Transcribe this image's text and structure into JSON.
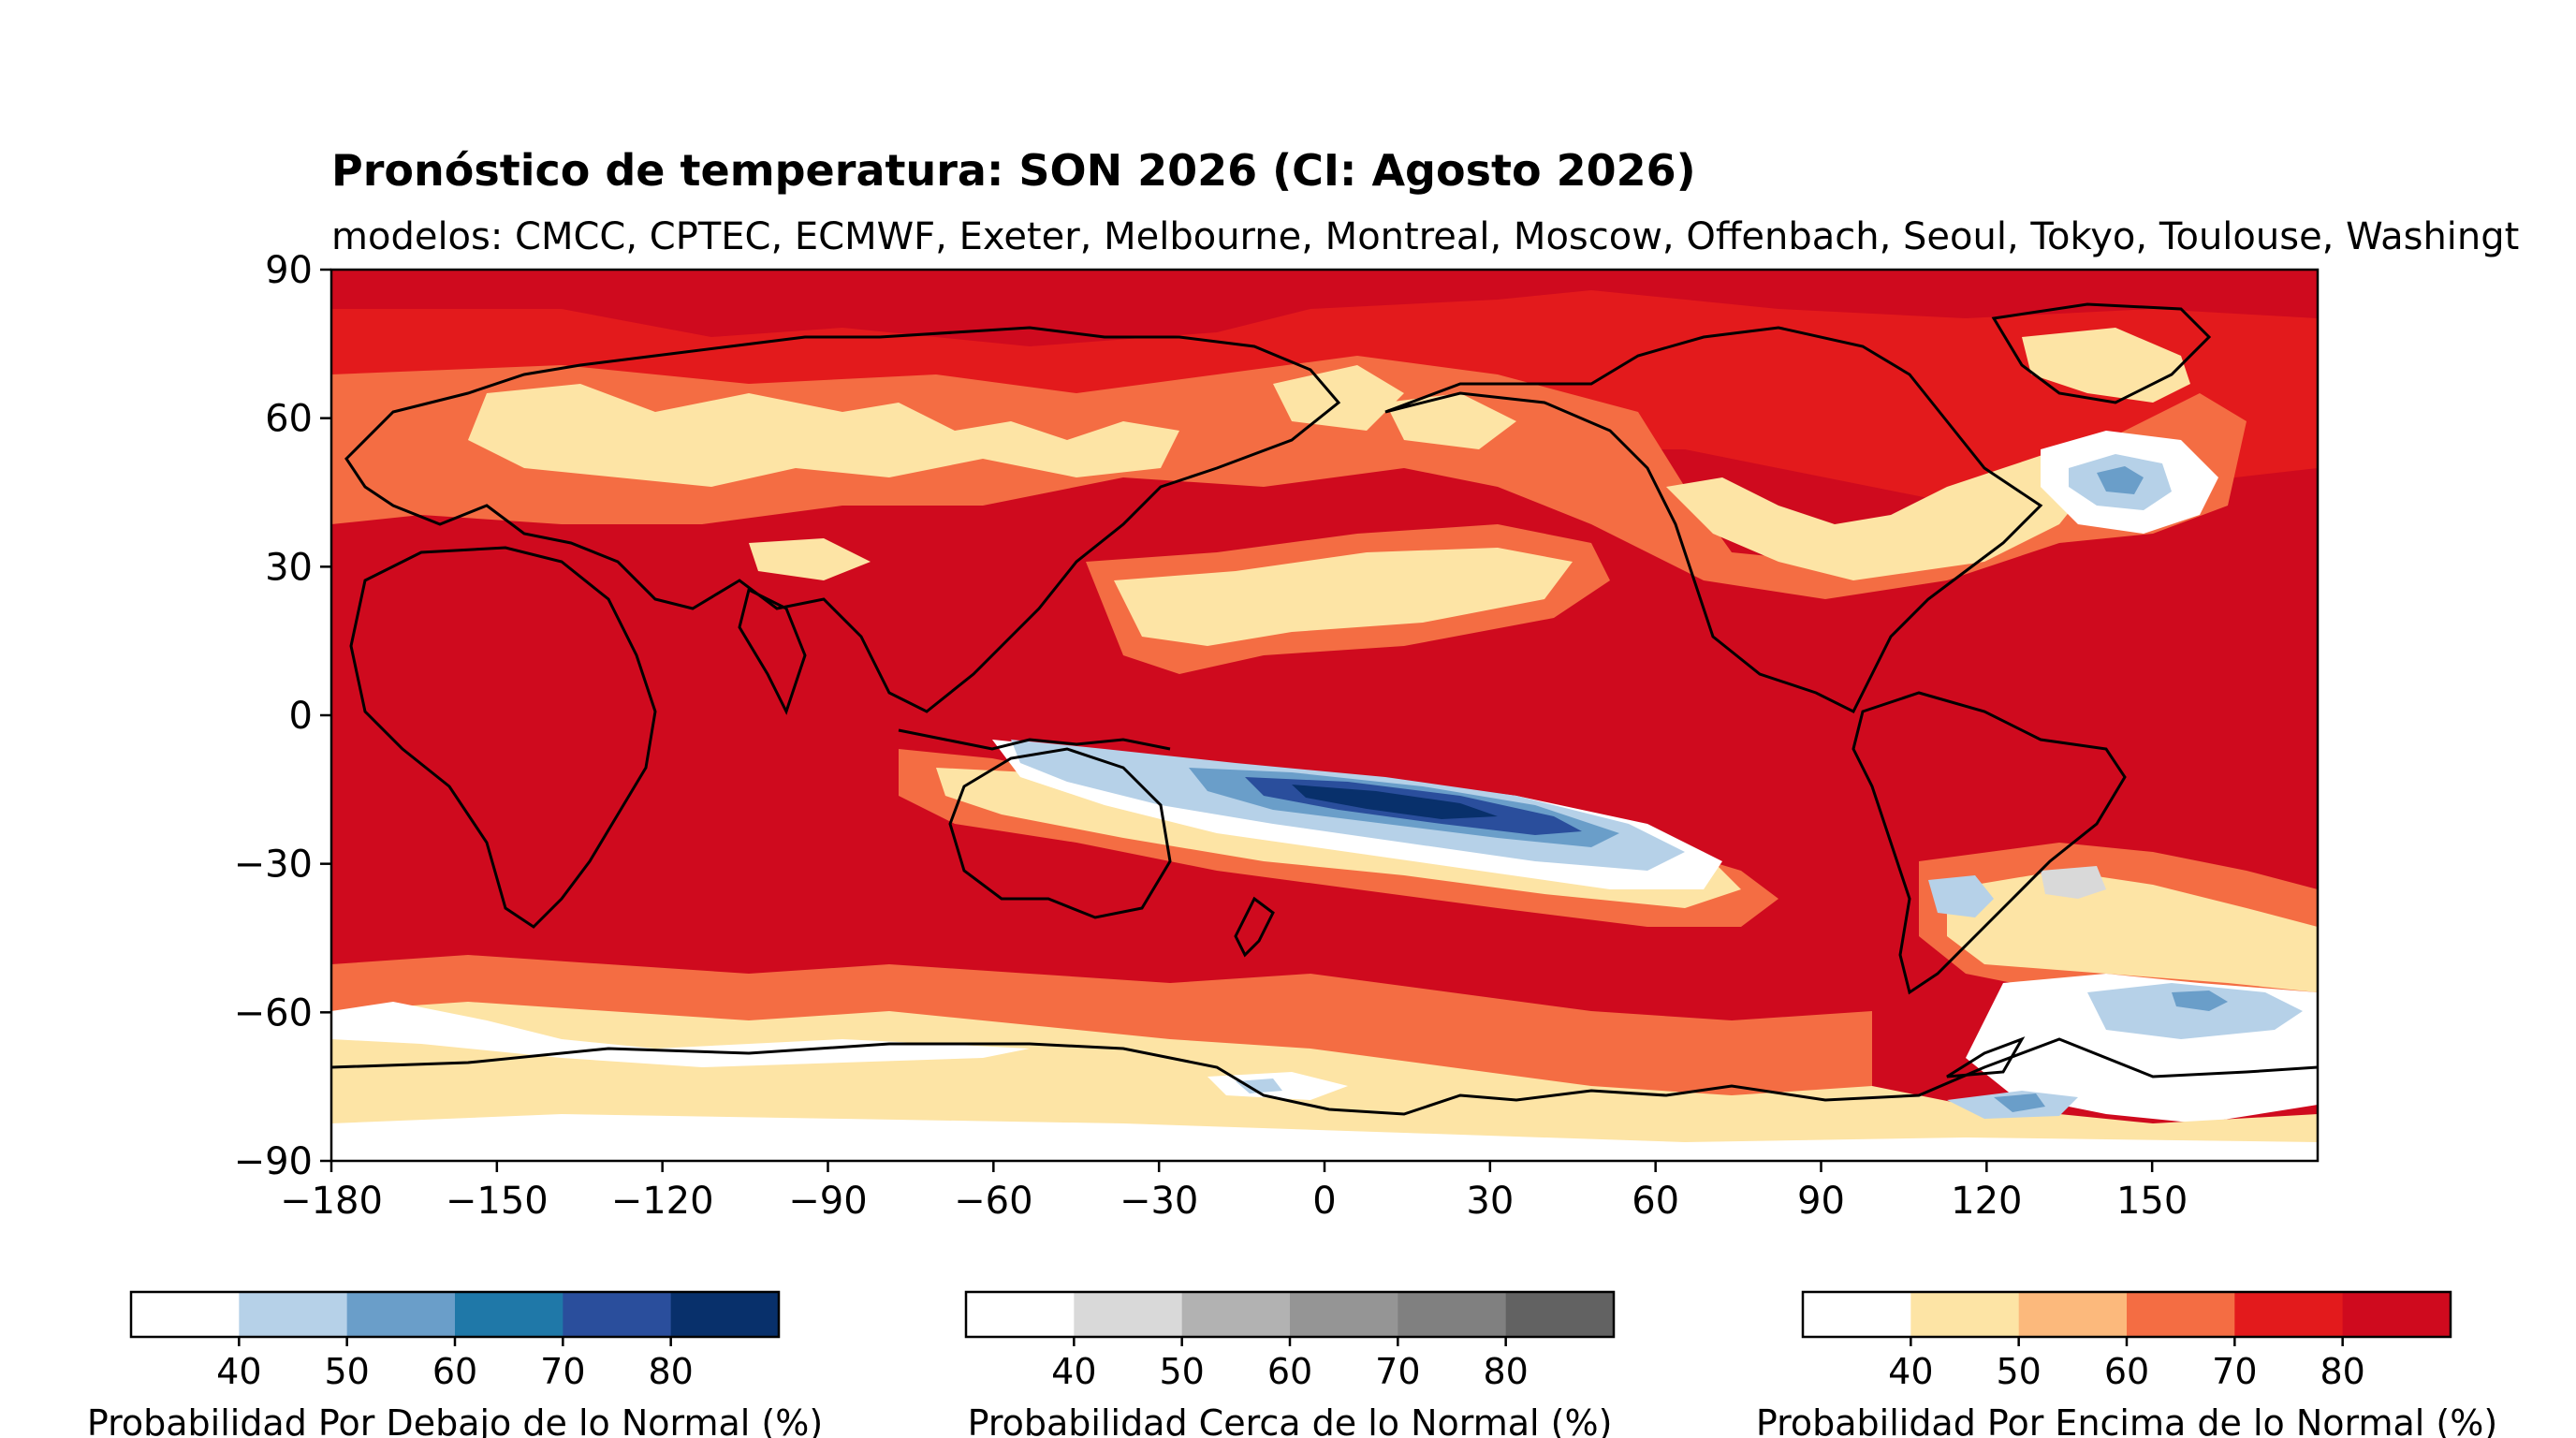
{
  "title": "Pronóstico de temperatura: SON 2026 (CI: Agosto 2026)",
  "subtitle": "modelos: CMCC, CPTEC, ECMWF, Exeter, Melbourne, Montreal, Moscow, Offenbach, Seoul, Tokyo, Toulouse, Washingt",
  "map": {
    "lon_ticks": [
      "−180",
      "−150",
      "−120",
      "−90",
      "−60",
      "−30",
      "0",
      "30",
      "60",
      "90",
      "120",
      "150"
    ],
    "lat_ticks": [
      "90",
      "60",
      "30",
      "0",
      "−30",
      "−60",
      "−90"
    ],
    "colors": {
      "white": "#ffffff",
      "above_50": "#fde4a5",
      "above_60": "#fcb97c",
      "above_70": "#f46d43",
      "above_80": "#e31a1c",
      "above_90": "#cf0a1e",
      "below_50": "#b6d1e8",
      "below_60": "#6a9ec9",
      "below_70": "#1f78a8",
      "below_80": "#2a4e9c",
      "below_90": "#08306b",
      "near_50": "#d9d9d9"
    }
  },
  "colorbars": [
    {
      "label": "Probabilidad Por Debajo de lo Normal (%)",
      "ticks": [
        "40",
        "50",
        "60",
        "70",
        "80"
      ],
      "colors": [
        "#ffffff",
        "#b6d1e8",
        "#6a9ec9",
        "#1f78a8",
        "#2a4e9c",
        "#08306b"
      ]
    },
    {
      "label": "Probabilidad Cerca de lo Normal (%)",
      "ticks": [
        "40",
        "50",
        "60",
        "70",
        "80"
      ],
      "colors": [
        "#ffffff",
        "#d9d9d9",
        "#b2b2b2",
        "#959595",
        "#808080",
        "#626262"
      ]
    },
    {
      "label": "Probabilidad Por Encima de lo Normal (%)",
      "ticks": [
        "40",
        "50",
        "60",
        "70",
        "80"
      ],
      "colors": [
        "#ffffff",
        "#fde4a5",
        "#fcb97c",
        "#f46d43",
        "#e31a1c",
        "#cf0a1e"
      ]
    }
  ]
}
